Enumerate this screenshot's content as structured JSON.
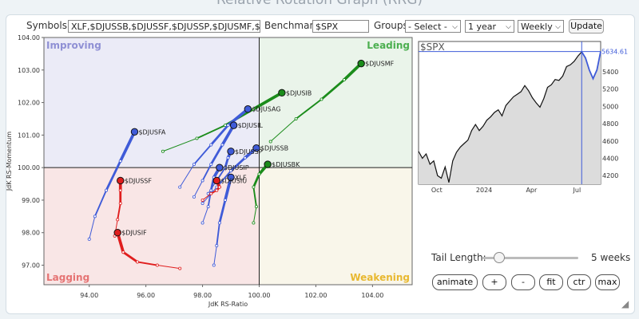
{
  "title": "Relative Rotation Graph (RRG)",
  "controls": {
    "symbols_label": "Symbols:",
    "symbols_value": "XLF,$DJUSSB,$DJUSSF,$DJUSSP,$DJUSMF,$DJ",
    "benchmark_label": "Benchmark:",
    "benchmark_value": "$SPX",
    "groups_label": "Groups:",
    "groups_value": "- Select -",
    "period_value": "1 year",
    "interval_value": "Weekly",
    "update_label": "Update"
  },
  "tail": {
    "label": "Tail Length:",
    "value": 5,
    "value_text": "5 weeks"
  },
  "buttons": [
    "animate",
    "+",
    "-",
    "fit",
    "ctr",
    "max"
  ],
  "quadrants": {
    "improving": "Improving",
    "leading": "Leading",
    "lagging": "Lagging",
    "weakening": "Weakening"
  },
  "quadrant_colors": {
    "improving": "#ebebf7",
    "leading": "#eaf4ea",
    "lagging": "#f9e6e6",
    "weakening": "#f9f6ea",
    "improving_text": "#8f90d4",
    "leading_text": "#4caf50",
    "lagging_text": "#e57373",
    "weakening_text": "#e8b830"
  },
  "chart_data": [
    {
      "type": "scatter",
      "xlabel": "JdK RS-Ratio",
      "ylabel": "JdK RS-Momentum",
      "xlim": [
        92.4,
        105.4
      ],
      "ylim": [
        96.4,
        104.0
      ],
      "x_ticks": [
        "94.00",
        "96.00",
        "98.00",
        "100.00",
        "102.00",
        "104.00"
      ],
      "y_ticks": [
        "97.00",
        "98.00",
        "99.00",
        "100.00",
        "101.00",
        "102.00",
        "103.00",
        "104.00"
      ],
      "center": [
        100,
        100
      ],
      "series": [
        {
          "name": "$DJUSMF",
          "color": "#1b8c1b",
          "points": [
            [
              100.4,
              100.8
            ],
            [
              101.3,
              101.5
            ],
            [
              102.2,
              102.1
            ],
            [
              103.0,
              102.7
            ],
            [
              103.6,
              103.2
            ]
          ]
        },
        {
          "name": "$DJUSIB",
          "color": "#1b8c1b",
          "points": [
            [
              96.6,
              100.5
            ],
            [
              97.8,
              100.9
            ],
            [
              98.8,
              101.3
            ],
            [
              99.8,
              101.8
            ],
            [
              100.8,
              102.3
            ]
          ]
        },
        {
          "name": "$DJUSBK",
          "color": "#1b8c1b",
          "points": [
            [
              99.8,
              98.3
            ],
            [
              99.9,
              98.8
            ],
            [
              99.8,
              99.4
            ],
            [
              100.0,
              99.8
            ],
            [
              100.3,
              100.1
            ]
          ]
        },
        {
          "name": "$DJUSFA",
          "color": "#3f5bd8",
          "points": [
            [
              94.0,
              97.8
            ],
            [
              94.2,
              98.5
            ],
            [
              94.6,
              99.3
            ],
            [
              95.1,
              100.2
            ],
            [
              95.6,
              101.1
            ]
          ]
        },
        {
          "name": "$DJUSAG",
          "color": "#3f5bd8",
          "points": [
            [
              97.2,
              99.4
            ],
            [
              97.7,
              100.1
            ],
            [
              98.3,
              100.7
            ],
            [
              98.9,
              101.3
            ],
            [
              99.6,
              101.8
            ]
          ]
        },
        {
          "name": "$DJUSIL",
          "color": "#3f5bd8",
          "points": [
            [
              97.7,
              99.1
            ],
            [
              98.0,
              99.6
            ],
            [
              98.3,
              100.1
            ],
            [
              98.7,
              100.7
            ],
            [
              99.1,
              101.3
            ]
          ]
        },
        {
          "name": "$DJUSSB",
          "color": "#3f5bd8",
          "points": [
            [
              98.0,
              98.9
            ],
            [
              98.5,
              99.4
            ],
            [
              99.0,
              99.9
            ],
            [
              99.5,
              100.3
            ],
            [
              99.9,
              100.6
            ]
          ]
        },
        {
          "name": "$DJUSSP",
          "color": "#3f5bd8",
          "points": [
            [
              98.2,
              99.2
            ],
            [
              98.5,
              99.6
            ],
            [
              98.8,
              100.0
            ],
            [
              98.9,
              100.3
            ],
            [
              99.0,
              100.5
            ]
          ]
        },
        {
          "name": "$DJUSIP",
          "color": "#3f5bd8",
          "points": [
            [
              98.0,
              98.3
            ],
            [
              98.2,
              98.8
            ],
            [
              98.3,
              99.3
            ],
            [
              98.4,
              99.7
            ],
            [
              98.6,
              100.0
            ]
          ]
        },
        {
          "name": "XLF",
          "color": "#3f5bd8",
          "points": [
            [
              98.4,
              97.0
            ],
            [
              98.5,
              97.6
            ],
            [
              98.6,
              98.3
            ],
            [
              98.8,
              99.0
            ],
            [
              99.0,
              99.7
            ]
          ]
        },
        {
          "name": "$DJUSSF",
          "color": "#e01e1e",
          "points": [
            [
              94.9,
              97.9
            ],
            [
              95.0,
              98.4
            ],
            [
              95.1,
              98.9
            ],
            [
              95.1,
              99.3
            ],
            [
              95.1,
              99.6
            ]
          ]
        },
        {
          "name": "$DJUSIF",
          "color": "#e01e1e",
          "points": [
            [
              97.2,
              96.9
            ],
            [
              96.4,
              97.0
            ],
            [
              95.7,
              97.1
            ],
            [
              95.2,
              97.4
            ],
            [
              95.0,
              98.0
            ]
          ]
        },
        {
          "name": "$DJUSIU",
          "color": "#e01e1e",
          "points": [
            [
              98.0,
              99.0
            ],
            [
              98.3,
              99.2
            ],
            [
              98.5,
              99.3
            ],
            [
              98.6,
              99.4
            ],
            [
              98.5,
              99.6
            ]
          ]
        }
      ]
    },
    {
      "type": "area",
      "title": "$SPX",
      "last_value_label": "5634.61",
      "y_ticks": [
        "4200",
        "4400",
        "4600",
        "4800",
        "5000",
        "5200",
        "5400"
      ],
      "ylim": [
        4100,
        5750
      ],
      "x_ticks": [
        "Oct",
        "2024",
        "Apr",
        "Jul"
      ],
      "values": [
        4480,
        4400,
        4450,
        4330,
        4370,
        4200,
        4170,
        4300,
        4120,
        4370,
        4470,
        4530,
        4570,
        4610,
        4720,
        4790,
        4720,
        4770,
        4840,
        4880,
        4930,
        4960,
        4890,
        5010,
        5060,
        5110,
        5140,
        5170,
        5240,
        5180,
        5100,
        5040,
        4990,
        5090,
        5220,
        5250,
        5310,
        5300,
        5350,
        5460,
        5480,
        5520,
        5580,
        5630,
        5560,
        5420,
        5320,
        5420,
        5634
      ]
    }
  ]
}
